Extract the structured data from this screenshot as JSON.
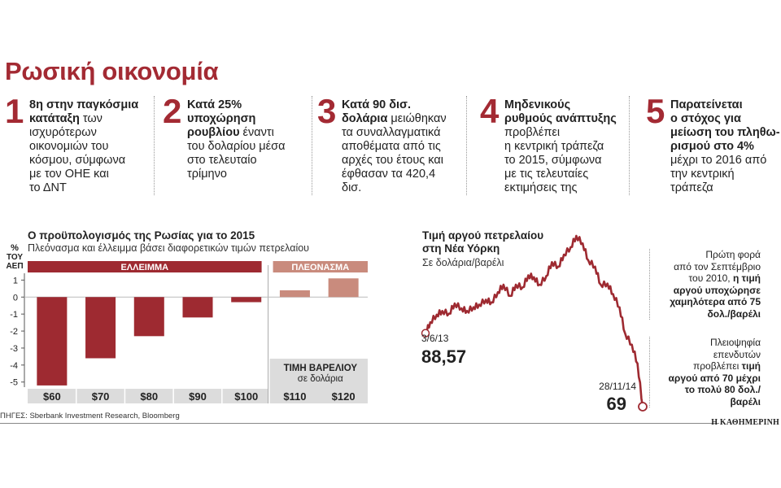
{
  "title": "Ρωσική οικονομία",
  "facts": [
    {
      "number": "1",
      "lines": [
        [
          "8η στην παγκόσμια",
          true
        ],
        [
          "κατάταξη",
          true,
          " των"
        ],
        [
          "ισχυρότερων",
          false
        ],
        [
          "οικονομιών του",
          false
        ],
        [
          "κόσμου, σύμφωνα",
          false
        ],
        [
          "με τον ΟΗΕ και",
          false
        ],
        [
          "το ΔΝΤ",
          false
        ]
      ]
    },
    {
      "number": "2",
      "lines": [
        [
          "Κατά 25%",
          true
        ],
        [
          "υποχώρηση",
          true
        ],
        [
          "ρουβλίου",
          true,
          " έναντι"
        ],
        [
          "του δολαρίου μέσα",
          false
        ],
        [
          "στο τελευταίο",
          false
        ],
        [
          "τρίμηνο",
          false
        ]
      ]
    },
    {
      "number": "3",
      "lines": [
        [
          "Κατά 90 δισ.",
          true
        ],
        [
          "δολάρια",
          true,
          " μειώθηκαν"
        ],
        [
          "τα συναλλαγματικά",
          false
        ],
        [
          "αποθέματα από τις",
          false
        ],
        [
          "αρχές του έτους και",
          false
        ],
        [
          "έφθασαν τα 420,4",
          false
        ],
        [
          "δισ.",
          false
        ]
      ]
    },
    {
      "number": "4",
      "lines": [
        [
          "Μηδενικούς",
          true
        ],
        [
          "ρυθμούς ανάπτυξης",
          true
        ],
        [
          "προβλέπει",
          false
        ],
        [
          "η κεντρική τράπεζα",
          false
        ],
        [
          "το 2015, σύμφωνα",
          false
        ],
        [
          "με τις τελευταίες",
          false
        ],
        [
          "εκτιμήσεις της",
          false
        ]
      ]
    },
    {
      "number": "5",
      "lines": [
        [
          "Παρατείνεται",
          true
        ],
        [
          "ο στόχος για",
          true
        ],
        [
          "μείωση του πληθω-",
          true
        ],
        [
          "ρισμού στο 4%",
          true
        ],
        [
          "μέχρι το 2016 από",
          false
        ],
        [
          "την κεντρική",
          false
        ],
        [
          "τράπεζα",
          false
        ]
      ]
    }
  ],
  "budget": {
    "title": "Ο προϋπολογισμός της Ρωσίας για το 2015",
    "subtitle": "Πλεόνασμα και έλλειμμα βάσει διαφορετικών τιμών πετρελαίου",
    "ylabel": [
      "%",
      "ΤΟΥ",
      "ΑΕΠ"
    ],
    "deficit_label": "ΕΛΛΕΙΜΜΑ",
    "surplus_label": "ΠΛΕΟΝΑΣΜΑ",
    "price_label": "ΤΙΜΗ ΒΑΡΕΛΙΟΥ",
    "price_unit": "σε δολάρια",
    "colors": {
      "deficit": "#9e2a31",
      "surplus": "#c98b7d",
      "band": "#dcdcdc"
    }
  },
  "oil": {
    "title_lines": [
      "Τιμή αργού πετρελαίου",
      "στη Νέα Υόρκη"
    ],
    "subtitle": "Σε δολάρια/βαρέλι",
    "start_date": "3/6/13",
    "start_value": "88,57",
    "end_date": "28/11/14",
    "end_value": "69",
    "note1": [
      [
        "Πρώτη φορά",
        false
      ],
      [
        "από τον Σεπτέμβριο",
        false
      ],
      [
        "του 2010, ",
        false,
        "η τιμή"
      ],
      [
        "αργού υποχώρησε",
        true
      ],
      [
        "χαμηλότερα από 75",
        true
      ],
      [
        "δολ./βαρέλι",
        true
      ]
    ],
    "note2": [
      [
        "Πλειοψηφία",
        false
      ],
      [
        "επενδυτών",
        false
      ],
      [
        "προβλέπει ",
        false,
        "τιμή"
      ],
      [
        "αργού από 70 μέχρι",
        true
      ],
      [
        "το πολύ 80 δολ./",
        true
      ],
      [
        "βαρέλι",
        true
      ]
    ],
    "color": "#9e2a31"
  },
  "sources": "ΠΗΓΕΣ: Sberbank Investment Research, Bloomberg",
  "brand": "Η ΚΑΘΗΜΕΡΙΝΗ",
  "chart_data": [
    {
      "type": "bar",
      "title": "Ο προϋπολογισμός της Ρωσίας για το 2015",
      "subtitle": "Πλεόνασμα και έλλειμμα βάσει διαφορετικών τιμών πετρελαίου",
      "xlabel": "ΤΙΜΗ ΒΑΡΕΛΙΟΥ σε δολάρια",
      "ylabel": "% ΤΟΥ ΑΕΠ",
      "categories": [
        "$60",
        "$70",
        "$80",
        "$90",
        "$100",
        "$110",
        "$120"
      ],
      "values": [
        -5.2,
        -3.6,
        -2.3,
        -1.2,
        -0.3,
        0.4,
        1.1
      ],
      "yticks": [
        1,
        0,
        -1,
        -2,
        -3,
        -4,
        -5
      ],
      "ylim": [
        -5.3,
        1.4
      ],
      "grid": false
    },
    {
      "type": "line",
      "title": "Τιμή αργού πετρελαίου στη Νέα Υόρκη",
      "subtitle": "Σε δολάρια/βαρέλι",
      "x": [
        "2013-06-03",
        "2013-06-15",
        "2013-07-01",
        "2013-07-15",
        "2013-08-01",
        "2013-08-15",
        "2013-09-01",
        "2013-09-15",
        "2013-10-01",
        "2013-10-15",
        "2013-11-01",
        "2013-11-15",
        "2013-12-01",
        "2013-12-15",
        "2014-01-01",
        "2014-01-15",
        "2014-02-01",
        "2014-02-15",
        "2014-03-01",
        "2014-03-15",
        "2014-04-01",
        "2014-04-15",
        "2014-05-01",
        "2014-05-15",
        "2014-06-01",
        "2014-06-15",
        "2014-07-01",
        "2014-07-15",
        "2014-08-01",
        "2014-08-15",
        "2014-09-01",
        "2014-09-15",
        "2014-10-01",
        "2014-10-15",
        "2014-11-01",
        "2014-11-15",
        "2014-11-28"
      ],
      "values": [
        88.57,
        91.5,
        93.5,
        94.5,
        93.8,
        96.5,
        95.2,
        94.5,
        95.5,
        96.2,
        97.5,
        96.8,
        99.5,
        101.5,
        98.5,
        101.5,
        100.8,
        104.0,
        103.5,
        101.5,
        103.8,
        107.5,
        106.3,
        109.5,
        111.5,
        114.5,
        112.5,
        108.0,
        106.3,
        101.5,
        101.8,
        99.0,
        95.5,
        88.5,
        85.5,
        80.5,
        69.0
      ],
      "annotations": [
        "3/6/13 88,57",
        "28/11/14 69"
      ]
    }
  ]
}
